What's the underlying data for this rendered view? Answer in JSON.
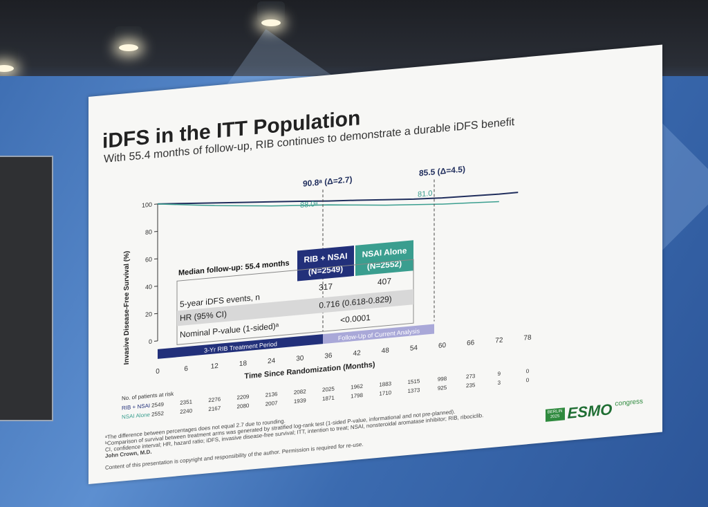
{
  "slide": {
    "title": "iDFS in the ITT Population",
    "subtitle": "With 55.4 months of follow-up, RIB continues to demonstrate a durable iDFS benefit",
    "annotations": {
      "rib_36": "90.8ᵃ (Δ=2.7)",
      "rib_60": "85.5 (Δ=4.5)",
      "nsai_36": "88.0ᵃ",
      "nsai_60": "81.0"
    },
    "median_followup": "Median follow-up: 55.4 months",
    "table": {
      "col_rib": "RIB + NSAI",
      "col_rib_n": "(N=2549)",
      "col_nsai": "NSAI Alone",
      "col_nsai_n": "(N=2552)",
      "row_events_label": "5-year iDFS events, n",
      "row_events_rib": "317",
      "row_events_nsai": "407",
      "row_hr_label": "HR (95% CI)",
      "row_hr_value": "0.716 (0.618-0.829)",
      "row_p_label": "Nominal P-value (1-sided)ᵃ",
      "row_p_value": "<0.0001"
    },
    "bars": {
      "treatment": "3-Yr RIB Treatment Period",
      "followup": "Follow-Up of Current Analysis"
    },
    "risk_table": {
      "title": "No. of patients at risk",
      "rib_label": "RIB + NSAI",
      "nsai_label": "NSAI Alone",
      "rib": [
        "2549",
        "2351",
        "2276",
        "2209",
        "2136",
        "2082",
        "2025",
        "1962",
        "1883",
        "1515",
        "998",
        "273",
        "9",
        "0"
      ],
      "nsai": [
        "2552",
        "2240",
        "2167",
        "2080",
        "2007",
        "1939",
        "1871",
        "1798",
        "1710",
        "1373",
        "925",
        "235",
        "3",
        "0"
      ]
    },
    "footnotes": [
      "ᵃThe difference between percentages does not equal 2.7 due to rounding.",
      "ᵇComparison of survival between treatment arms was generated by stratified log-rank test (1-sided P-value, informational and not pre-planned).",
      "CI, confidence interval; HR, hazard ratio; iDFS, invasive disease-free survival; ITT, intention to treat; NSAI, nonsteroidal aromatase inhibitor; RIB, ribociclib.",
      "John Crown, M.D."
    ],
    "copyright": "Content of this presentation is copyright and responsibility of the author. Permission is required for re-use.",
    "logo": {
      "box": "BERLIN 2025",
      "text": "ESMO",
      "sub": "congress"
    }
  },
  "chart_data": {
    "type": "line",
    "xlabel": "Time Since Randomization (Months)",
    "ylabel": "Invasive Disease-Free Survival (%)",
    "x_ticks": [
      "0",
      "6",
      "12",
      "18",
      "24",
      "30",
      "36",
      "42",
      "48",
      "54",
      "60",
      "66",
      "72",
      "78"
    ],
    "y_ticks": [
      "0",
      "20",
      "40",
      "60",
      "80",
      "100"
    ],
    "xlim": [
      0,
      78
    ],
    "ylim": [
      0,
      100
    ],
    "series": [
      {
        "name": "RIB + NSAI",
        "color": "#1f2d5c",
        "x": [
          0,
          6,
          12,
          18,
          24,
          30,
          36,
          42,
          48,
          54,
          60,
          66,
          72,
          76
        ],
        "y": [
          100,
          98.5,
          97,
          95.5,
          94,
          92.5,
          90.8,
          89.5,
          88,
          86.5,
          85.5,
          85,
          84.5,
          84.5
        ]
      },
      {
        "name": "NSAI Alone",
        "color": "#3a9e8f",
        "x": [
          0,
          6,
          12,
          18,
          24,
          30,
          36,
          42,
          48,
          54,
          60,
          66,
          72
        ],
        "y": [
          100,
          97.5,
          95,
          93,
          91,
          89.5,
          88,
          86,
          84,
          82.5,
          81,
          80,
          79
        ]
      }
    ]
  }
}
